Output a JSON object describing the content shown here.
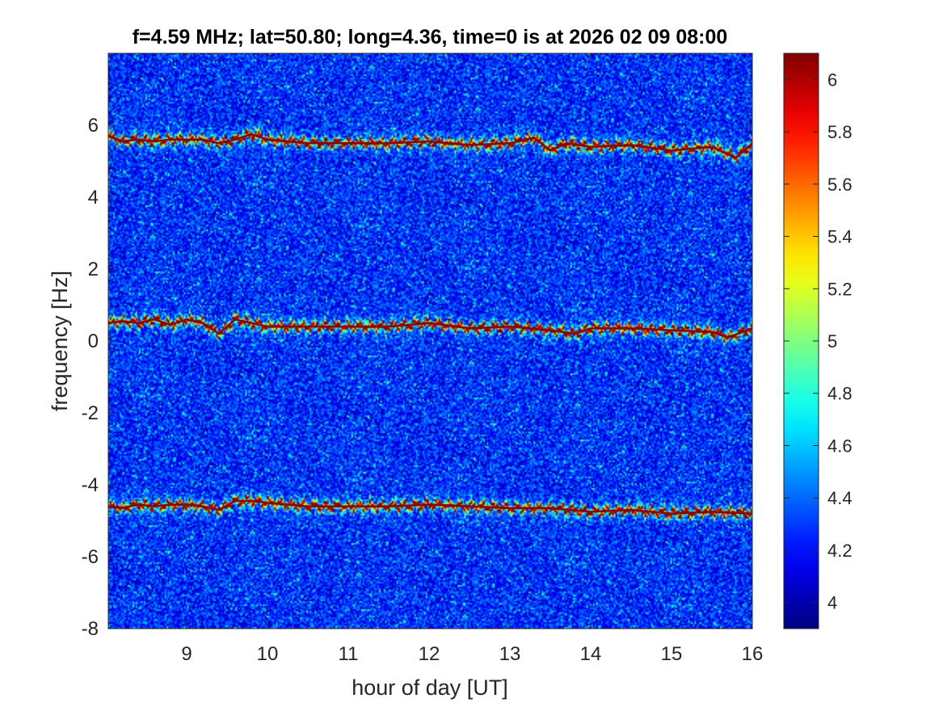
{
  "colors": {
    "colormap": "jet",
    "background_noise": "#0a2fc0",
    "trace_peak": "#8b0000",
    "axes_box": "#262626"
  },
  "chart_data": {
    "type": "heatmap",
    "title": "f=4.59 MHz;  lat=50.80; long=4.36, time=0 is at 2026 02 09 08:00",
    "xlabel": "hour of day [UT]",
    "ylabel": "frequency [Hz]",
    "xlim": [
      8.03,
      16.0
    ],
    "ylim": [
      -8,
      8
    ],
    "x_ticks": [
      9,
      10,
      11,
      12,
      13,
      14,
      15,
      16
    ],
    "y_ticks": [
      -8,
      -6,
      -4,
      -2,
      0,
      2,
      4,
      6
    ],
    "colorbar": {
      "colormap": "jet",
      "clim": [
        3.9,
        6.1
      ],
      "ticks": [
        4,
        4.2,
        4.4,
        4.6,
        4.8,
        5,
        5.2,
        5.4,
        5.6,
        5.8,
        6
      ]
    },
    "grid": false,
    "series": [
      {
        "x": [
          8.03,
          8.2,
          8.4,
          8.6,
          8.8,
          9.0,
          9.2,
          9.4,
          9.6,
          9.8,
          10.0,
          10.5,
          11.0,
          11.5,
          12.0,
          12.5,
          13.0,
          13.3,
          13.5,
          13.7,
          14.0,
          14.5,
          15.0,
          15.5,
          15.8,
          16.0
        ],
        "y": [
          5.7,
          5.55,
          5.6,
          5.55,
          5.6,
          5.6,
          5.6,
          5.5,
          5.6,
          5.75,
          5.6,
          5.5,
          5.5,
          5.5,
          5.55,
          5.45,
          5.5,
          5.65,
          5.3,
          5.5,
          5.4,
          5.45,
          5.3,
          5.4,
          5.1,
          5.5
        ]
      },
      {
        "x": [
          8.03,
          8.2,
          8.4,
          8.6,
          8.8,
          9.0,
          9.2,
          9.4,
          9.6,
          9.8,
          10.0,
          10.5,
          11.0,
          11.5,
          12.0,
          12.5,
          13.0,
          13.5,
          13.8,
          14.0,
          14.5,
          15.0,
          15.5,
          15.7,
          16.0
        ],
        "y": [
          0.5,
          0.55,
          0.5,
          0.6,
          0.45,
          0.6,
          0.5,
          0.2,
          0.6,
          0.5,
          0.4,
          0.4,
          0.4,
          0.4,
          0.5,
          0.35,
          0.4,
          0.3,
          0.2,
          0.35,
          0.35,
          0.3,
          0.25,
          0.1,
          0.35
        ]
      },
      {
        "x": [
          8.03,
          8.2,
          8.4,
          8.6,
          8.8,
          9.0,
          9.2,
          9.4,
          9.6,
          9.8,
          10.0,
          10.5,
          11.0,
          11.5,
          12.0,
          12.5,
          13.0,
          13.5,
          14.0,
          14.5,
          15.0,
          15.5,
          16.0
        ],
        "y": [
          -4.6,
          -4.65,
          -4.55,
          -4.6,
          -4.55,
          -4.55,
          -4.6,
          -4.7,
          -4.45,
          -4.45,
          -4.5,
          -4.6,
          -4.6,
          -4.6,
          -4.55,
          -4.6,
          -4.65,
          -4.65,
          -4.75,
          -4.7,
          -4.8,
          -4.75,
          -4.8
        ]
      }
    ]
  }
}
